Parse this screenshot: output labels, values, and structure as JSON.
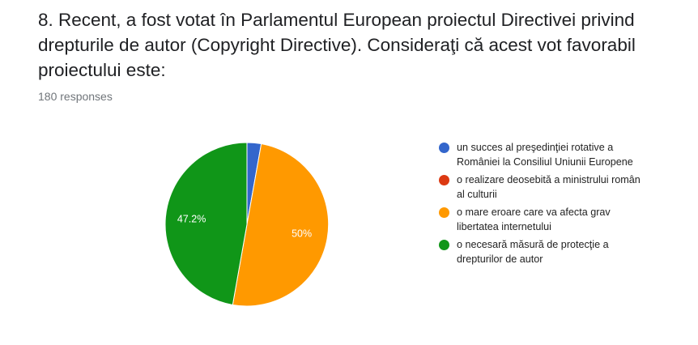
{
  "question": {
    "title": "8. Recent, a fost votat în Parlamentul European proiectul Directivei privind drepturile de autor (Copyright Directive). Consideraţi că acest vot favorabil proiectului este:",
    "responses": "180 responses"
  },
  "chart_data": {
    "type": "pie",
    "categories": [
      "un succes al preşedinţiei rotative a României la Consiliul Uniunii Europene",
      "o realizare deosebită a ministrului român al culturii",
      "o mare eroare care va afecta grav libertatea internetului",
      "o necesară măsură de protecţie a drepturilor de autor"
    ],
    "values": [
      2.8,
      0,
      50,
      47.2
    ],
    "value_labels": [
      "",
      "",
      "50%",
      "47.2%"
    ],
    "colors": [
      "#3366cc",
      "#dc3912",
      "#ff9900",
      "#109618"
    ],
    "legend_position": "right"
  }
}
